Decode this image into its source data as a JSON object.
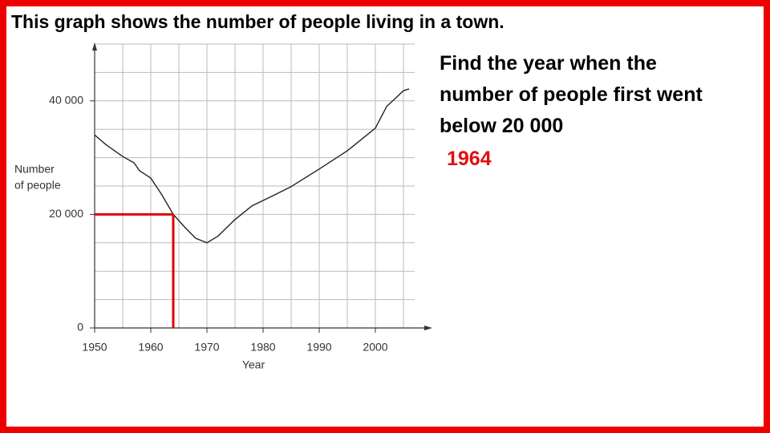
{
  "slide": {
    "heading": "This graph shows the number of people living in a town.",
    "question": [
      "Find the year when the",
      "number of people first went",
      "below 20 000"
    ],
    "answer": "1964"
  },
  "chart_data": {
    "type": "line",
    "ylabel": [
      "Number",
      "of people"
    ],
    "xlabel": "Year",
    "x": [
      1950,
      1952,
      1955,
      1957,
      1958,
      1960,
      1962,
      1964,
      1966,
      1968,
      1970,
      1972,
      1975,
      1978,
      1982,
      1985,
      1990,
      1995,
      2000,
      2002,
      2005,
      2006
    ],
    "values": [
      34000,
      32300,
      30200,
      29100,
      27700,
      26400,
      23400,
      20000,
      17800,
      15800,
      15000,
      16200,
      19100,
      21500,
      23400,
      24900,
      28000,
      31200,
      35200,
      39000,
      41800,
      42100
    ],
    "color": "#222222",
    "xlim": [
      1950,
      2007
    ],
    "ylim": [
      0,
      50000
    ],
    "xticks": [
      1950,
      1960,
      1970,
      1980,
      1990,
      2000
    ],
    "yticks": [
      0,
      {
        "value": 20000,
        "label": "20 000"
      },
      {
        "value": 40000,
        "label": "40 000"
      }
    ],
    "xgrid": [
      1950,
      1955,
      1960,
      1965,
      1970,
      1975,
      1980,
      1985,
      1990,
      1995,
      2000,
      2005
    ],
    "ygrid": [
      5000,
      10000,
      15000,
      20000,
      25000,
      30000,
      35000,
      40000,
      45000,
      50000
    ],
    "reading": {
      "x": 1964,
      "y": 20000,
      "color": "#e00000"
    }
  }
}
